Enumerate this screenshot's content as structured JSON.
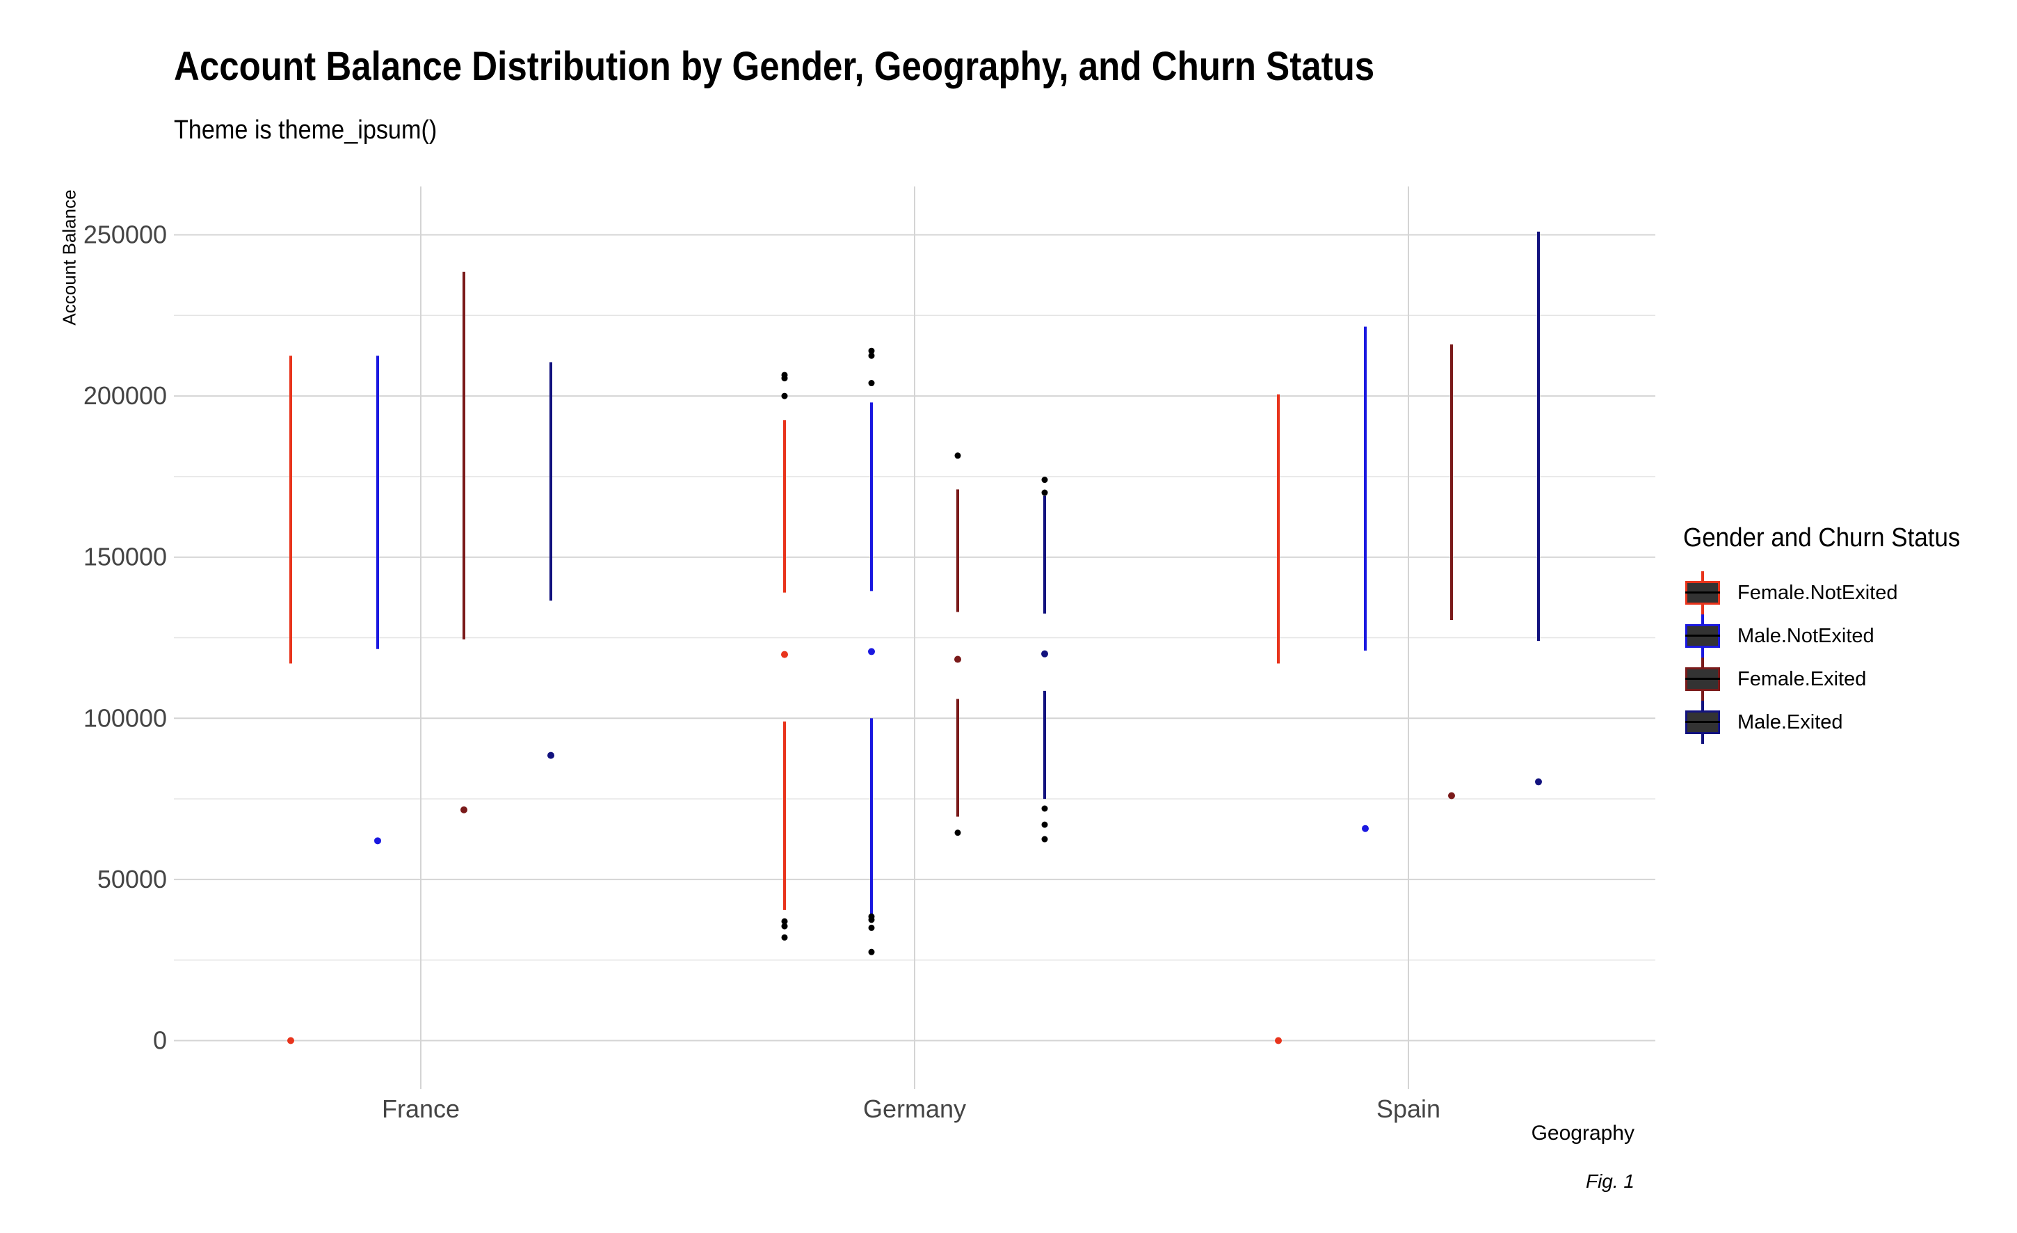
{
  "title": "Account Balance Distribution by Gender, Geography, and Churn Status",
  "subtitle": "Theme is theme_ipsum()",
  "caption": "Fig. 1",
  "chart_data": {
    "type": "box",
    "xlabel": "Geography",
    "ylabel": "Account Balance",
    "ylim": [
      -15000,
      265000
    ],
    "yticks": [
      0,
      50000,
      100000,
      150000,
      200000,
      250000
    ],
    "categories": [
      "France",
      "Germany",
      "Spain"
    ],
    "grid": true,
    "legend_position": "right",
    "legend_title": "Gender and Churn Status",
    "series": [
      {
        "name": "Female.NotExited",
        "color": "#e8341c",
        "boxes": [
          {
            "category": "France",
            "median": 0,
            "upper_whisker": [
              117000,
              212500
            ],
            "lower_whisker": null,
            "outliers": []
          },
          {
            "category": "Germany",
            "median": 119800,
            "upper_whisker": [
              139000,
              192500
            ],
            "lower_whisker": [
              40500,
              99000
            ],
            "outliers": [
              32000,
              35500,
              37000,
              200000,
              205500,
              206500
            ]
          },
          {
            "category": "Spain",
            "median": 0,
            "upper_whisker": [
              117000,
              200500
            ],
            "lower_whisker": null,
            "outliers": []
          }
        ]
      },
      {
        "name": "Male.NotExited",
        "color": "#1a18e0",
        "boxes": [
          {
            "category": "France",
            "median": 62000,
            "upper_whisker": [
              121500,
              212500
            ],
            "lower_whisker": null,
            "outliers": []
          },
          {
            "category": "Germany",
            "median": 120700,
            "upper_whisker": [
              139500,
              198000
            ],
            "lower_whisker": [
              39000,
              100000
            ],
            "outliers": [
              27500,
              35000,
              37500,
              38500,
              204000,
              212500,
              214000
            ]
          },
          {
            "category": "Spain",
            "median": 65800,
            "upper_whisker": [
              121000,
              221500
            ],
            "lower_whisker": null,
            "outliers": []
          }
        ]
      },
      {
        "name": "Female.Exited",
        "color": "#7a1a1a",
        "boxes": [
          {
            "category": "France",
            "median": 71600,
            "upper_whisker": [
              124500,
              238500
            ],
            "lower_whisker": null,
            "outliers": []
          },
          {
            "category": "Germany",
            "median": 118300,
            "upper_whisker": [
              133000,
              171000
            ],
            "lower_whisker": [
              69500,
              106000
            ],
            "outliers": [
              64500,
              181500
            ]
          },
          {
            "category": "Spain",
            "median": 76000,
            "upper_whisker": [
              130500,
              216000
            ],
            "lower_whisker": null,
            "outliers": []
          }
        ]
      },
      {
        "name": "Male.Exited",
        "color": "#12127e",
        "boxes": [
          {
            "category": "France",
            "median": 88500,
            "upper_whisker": [
              136500,
              210500
            ],
            "lower_whisker": null,
            "outliers": []
          },
          {
            "category": "Germany",
            "median": 120000,
            "upper_whisker": [
              132500,
              169000
            ],
            "lower_whisker": [
              75000,
              108500
            ],
            "outliers": [
              62500,
              67000,
              72000,
              170000,
              174000
            ]
          },
          {
            "category": "Spain",
            "median": 80300,
            "upper_whisker": [
              124000,
              251000
            ],
            "lower_whisker": null,
            "outliers": []
          }
        ]
      }
    ]
  }
}
